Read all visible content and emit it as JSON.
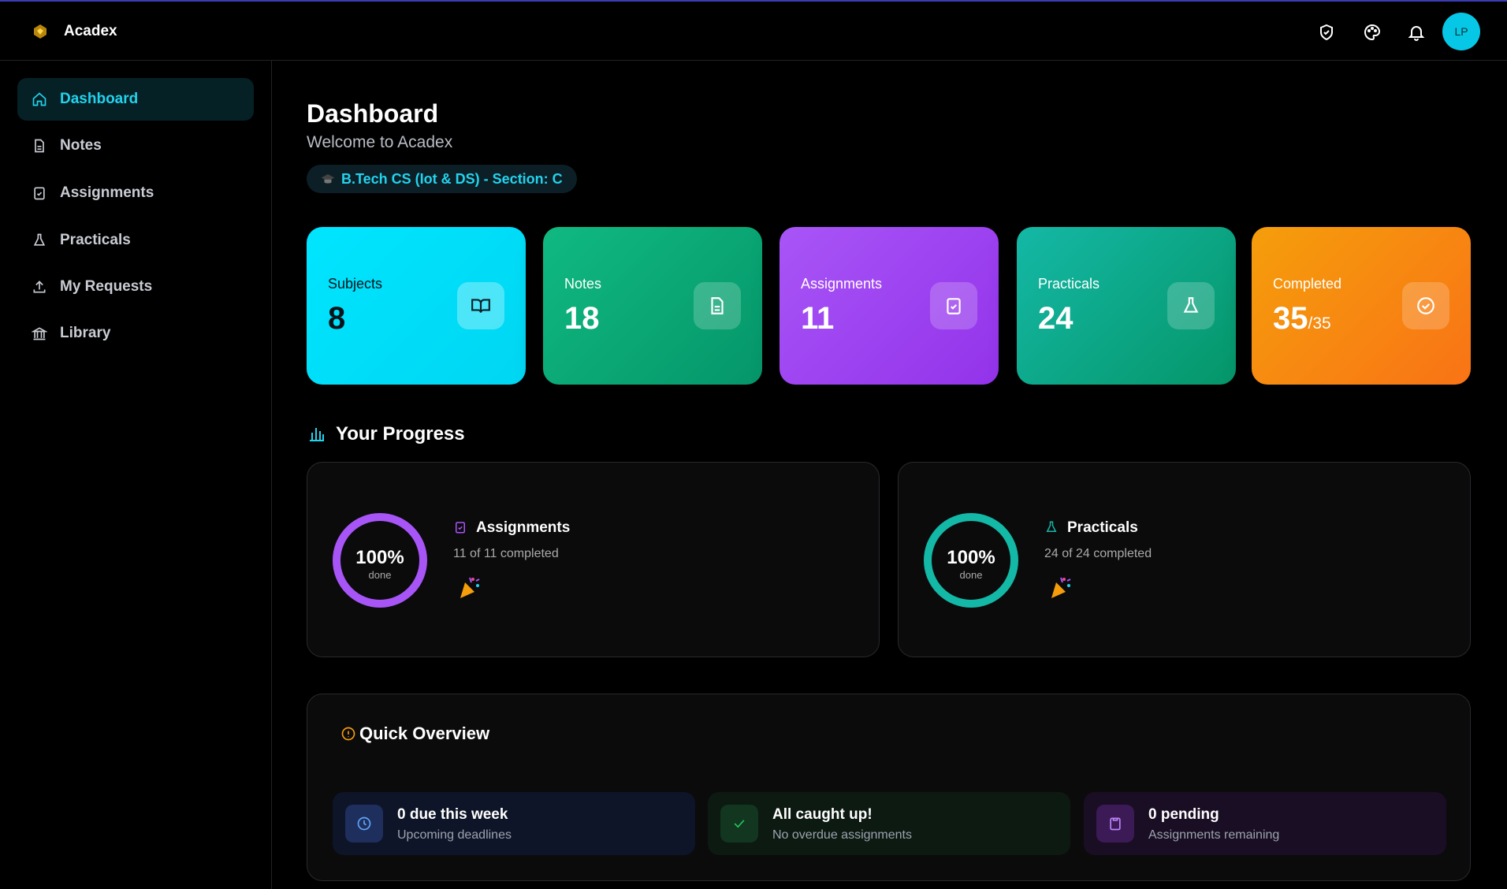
{
  "header": {
    "brand": "Acadex",
    "avatar": "LP"
  },
  "sidebar": {
    "items": [
      "Dashboard",
      "Notes",
      "Assignments",
      "Practicals",
      "My Requests",
      "Library"
    ]
  },
  "page": {
    "title": "Dashboard",
    "subtitle": "Welcome to Acadex",
    "badge": "B.Tech CS (Iot & DS) - Section: C"
  },
  "stats": [
    {
      "label": "Subjects",
      "value": 8
    },
    {
      "label": "Notes",
      "value": 18
    },
    {
      "label": "Assignments",
      "value": 11
    },
    {
      "label": "Practicals",
      "value": 24
    },
    {
      "label": "Completed",
      "value": 35,
      "total": "/35"
    }
  ],
  "progress": {
    "title": "Your Progress",
    "cards": [
      {
        "percent": "100%",
        "caption": "done",
        "title": "Assignments",
        "detail": "11 of 11 completed"
      },
      {
        "percent": "100%",
        "caption": "done",
        "title": "Practicals",
        "detail": "24 of 24 completed"
      }
    ]
  },
  "overview": {
    "title": "Quick Overview",
    "tiles": [
      {
        "title": "0 due this week",
        "subtitle": "Upcoming deadlines"
      },
      {
        "title": "All caught up!",
        "subtitle": "No overdue assignments"
      },
      {
        "title": "0 pending",
        "subtitle": "Assignments remaining"
      }
    ]
  }
}
